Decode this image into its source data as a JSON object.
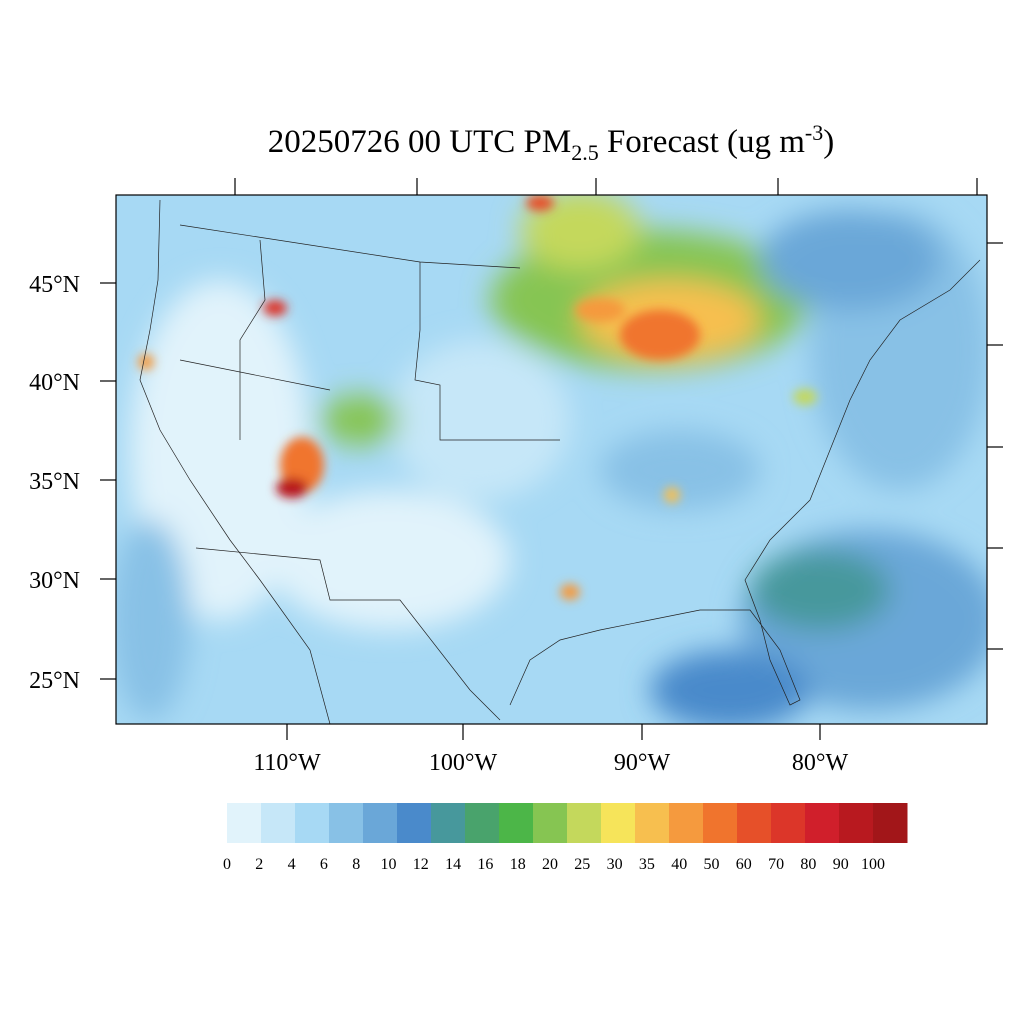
{
  "title": {
    "main": "20250726 00 UTC PM",
    "subscript": "2.5",
    "middle": " Forecast (ug m",
    "superscript": "-3",
    "end": ")"
  },
  "latitude_labels": [
    "45°N",
    "40°N",
    "35°N",
    "30°N",
    "25°N"
  ],
  "longitude_labels": [
    "110°W",
    "100°W",
    "90°W",
    "80°W"
  ],
  "colorbar": {
    "labels": [
      "0",
      "2",
      "4",
      "6",
      "8",
      "10",
      "12",
      "14",
      "16",
      "18",
      "20",
      "25",
      "30",
      "35",
      "40",
      "50",
      "60",
      "70",
      "80",
      "90",
      "100"
    ],
    "colors": [
      "#e1f3fb",
      "#c6e7f8",
      "#a7d9f4",
      "#88c1e6",
      "#6aa7d8",
      "#4a8acb",
      "#47989c",
      "#49a36c",
      "#4cb648",
      "#86c552",
      "#c4d85c",
      "#f6e45a",
      "#f7bf4f",
      "#f59a3e",
      "#f0742d",
      "#e65029",
      "#dc3629",
      "#d01f2b",
      "#b8191f",
      "#a21619"
    ]
  }
}
